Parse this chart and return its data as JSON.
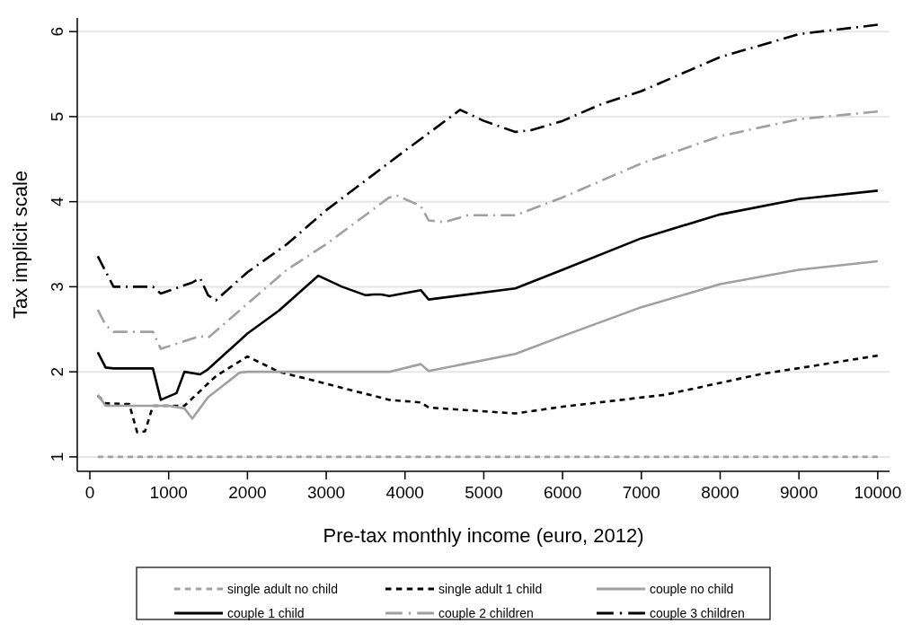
{
  "chart_data": {
    "type": "line",
    "xlabel": "Pre-tax monthly income (euro, 2012)",
    "ylabel": "Tax implicit scale",
    "xlim": [
      -160,
      10150
    ],
    "ylim": [
      0.83,
      6.16
    ],
    "xticks": [
      0,
      1000,
      2000,
      3000,
      4000,
      5000,
      6000,
      7000,
      8000,
      9000,
      10000
    ],
    "yticks": [
      1,
      2,
      3,
      4,
      5,
      6
    ],
    "grid": "y",
    "legend": "bottom",
    "series": [
      {
        "name": "single adult no child",
        "color": "#a0a0a0",
        "line_style": "dotted",
        "x": [
          100,
          10000
        ],
        "values": [
          1,
          1
        ]
      },
      {
        "name": "single adult 1 child",
        "color": "#000000",
        "line_style": "dotted",
        "x": [
          100,
          200,
          500,
          600,
          700,
          800,
          1200,
          1600,
          2000,
          2400,
          3000,
          3800,
          4200,
          4300,
          5400,
          6000,
          7300,
          8000,
          8500,
          10000
        ],
        "values": [
          1.72,
          1.63,
          1.62,
          1.29,
          1.3,
          1.6,
          1.6,
          1.95,
          2.18,
          2.0,
          1.86,
          1.67,
          1.64,
          1.58,
          1.51,
          1.59,
          1.73,
          1.87,
          1.97,
          2.19
        ]
      },
      {
        "name": "couple no child",
        "color": "#a0a0a0",
        "line_style": "solid",
        "x": [
          100,
          200,
          1000,
          1200,
          1300,
          1500,
          1900,
          2000,
          3800,
          4200,
          4300,
          5400,
          6000,
          7000,
          8000,
          9000,
          10000
        ],
        "values": [
          1.73,
          1.6,
          1.6,
          1.57,
          1.45,
          1.7,
          1.99,
          2.0,
          2.0,
          2.09,
          2.01,
          2.21,
          2.42,
          2.76,
          3.03,
          3.2,
          3.3
        ]
      },
      {
        "name": "couple 1 child",
        "color": "#000000",
        "line_style": "solid",
        "x": [
          100,
          200,
          300,
          800,
          900,
          1100,
          1200,
          1400,
          1500,
          2000,
          2400,
          2900,
          3200,
          3500,
          3600,
          3700,
          3800,
          4200,
          4300,
          5400,
          6000,
          7000,
          8000,
          9000,
          10000
        ],
        "values": [
          2.23,
          2.05,
          2.04,
          2.04,
          1.67,
          1.75,
          2.0,
          1.97,
          2.03,
          2.45,
          2.72,
          3.13,
          3.0,
          2.9,
          2.91,
          2.91,
          2.89,
          2.96,
          2.85,
          2.98,
          3.2,
          3.57,
          3.85,
          4.03,
          4.13
        ]
      },
      {
        "name": "couple 2 children",
        "color": "#a0a0a0",
        "line_style": "dashed",
        "x": [
          100,
          200,
          300,
          800,
          900,
          1400,
          1500,
          2000,
          2500,
          3000,
          3800,
          3900,
          4200,
          4300,
          4500,
          4800,
          5400,
          6000,
          7000,
          8000,
          9000,
          10000
        ],
        "values": [
          2.73,
          2.55,
          2.47,
          2.47,
          2.27,
          2.42,
          2.4,
          2.8,
          3.2,
          3.5,
          4.05,
          4.07,
          3.95,
          3.78,
          3.76,
          3.84,
          3.84,
          4.05,
          4.45,
          4.77,
          4.97,
          5.06
        ]
      },
      {
        "name": "couple 3 children",
        "color": "#000000",
        "line_style": "dashed",
        "x": [
          100,
          300,
          800,
          900,
          1300,
          1400,
          1500,
          1600,
          2000,
          2500,
          3000,
          4000,
          4700,
          5000,
          5400,
          5600,
          6000,
          6500,
          7000,
          8000,
          9000,
          10000
        ],
        "values": [
          3.36,
          3.0,
          3.0,
          2.92,
          3.05,
          3.1,
          2.9,
          2.84,
          3.17,
          3.5,
          3.9,
          4.6,
          5.08,
          4.95,
          4.82,
          4.84,
          4.95,
          5.15,
          5.3,
          5.7,
          5.97,
          6.08
        ]
      }
    ]
  }
}
